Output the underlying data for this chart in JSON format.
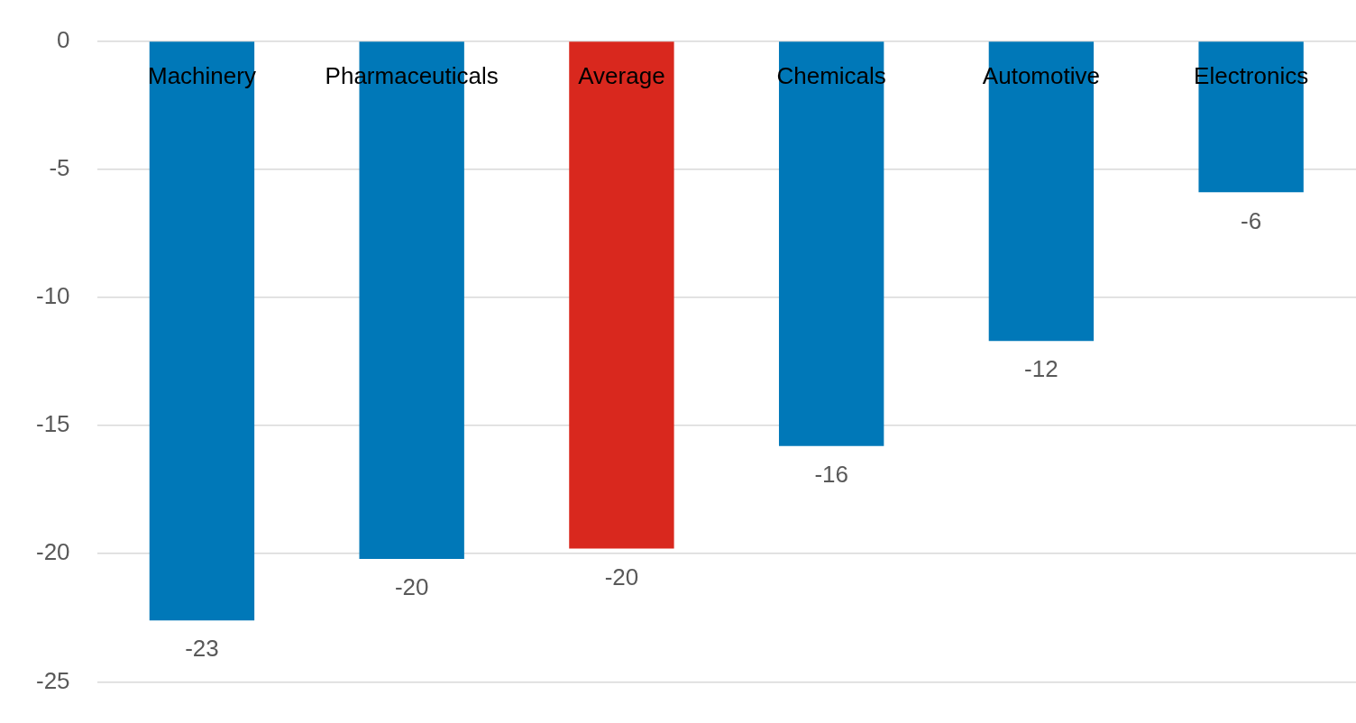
{
  "chart_data": {
    "type": "bar",
    "categories": [
      "Machinery",
      "Pharmaceuticals",
      "Average",
      "Chemicals",
      "Automotive",
      "Electronics"
    ],
    "values": [
      -22.6,
      -20.2,
      -19.8,
      -15.8,
      -11.7,
      -5.9
    ],
    "colors": [
      "#0078b8",
      "#0078b8",
      "#d9281e",
      "#0078b8",
      "#0078b8",
      "#0078b8"
    ],
    "value_labels": [
      "-23",
      "-20",
      "-20",
      "-16",
      "-12",
      "-6"
    ],
    "ylim": [
      -25,
      0
    ],
    "yticks": [
      -25,
      -20,
      -15,
      -10,
      -5,
      0
    ],
    "grid": "y",
    "legend": false
  }
}
